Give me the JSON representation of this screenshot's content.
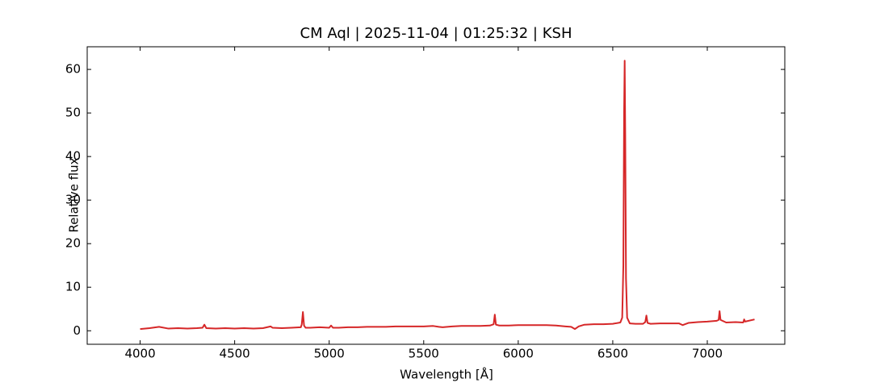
{
  "chart_data": {
    "type": "line",
    "title": "CM Aql | 2025-11-04 | 01:25:32 | KSH",
    "x_label": "Wavelength [Å]",
    "y_label": "Relative flux",
    "xlim": [
      3720,
      7410
    ],
    "ylim": [
      -3.1,
      65.2
    ],
    "xticks": [
      4000,
      4500,
      5000,
      5500,
      6000,
      6500,
      7000
    ],
    "yticks": [
      0,
      10,
      20,
      30,
      40,
      50,
      60
    ],
    "x": [
      4000,
      4050,
      4100,
      4150,
      4200,
      4250,
      4300,
      4330,
      4340,
      4350,
      4400,
      4450,
      4500,
      4550,
      4600,
      4650,
      4690,
      4700,
      4750,
      4800,
      4850,
      4855,
      4861,
      4867,
      4875,
      4900,
      4950,
      5000,
      5010,
      5020,
      5050,
      5100,
      5150,
      5200,
      5250,
      5300,
      5350,
      5400,
      5450,
      5500,
      5550,
      5580,
      5600,
      5650,
      5700,
      5750,
      5800,
      5850,
      5870,
      5876,
      5882,
      5900,
      5950,
      6000,
      6050,
      6100,
      6150,
      6200,
      6250,
      6280,
      6300,
      6320,
      6350,
      6400,
      6450,
      6500,
      6540,
      6550,
      6556,
      6560,
      6563,
      6566,
      6570,
      6576,
      6590,
      6620,
      6660,
      6672,
      6678,
      6684,
      6700,
      6750,
      6800,
      6850,
      6870,
      6900,
      6950,
      7000,
      7050,
      7060,
      7065,
      7070,
      7100,
      7150,
      7190,
      7195,
      7200,
      7250
    ],
    "series": [
      {
        "color": "#d62728",
        "values": [
          0.4,
          0.6,
          0.9,
          0.5,
          0.6,
          0.5,
          0.6,
          0.7,
          1.4,
          0.6,
          0.5,
          0.6,
          0.5,
          0.6,
          0.5,
          0.6,
          1.0,
          0.7,
          0.6,
          0.7,
          0.8,
          1.5,
          4.3,
          1.2,
          0.7,
          0.7,
          0.8,
          0.7,
          1.2,
          0.7,
          0.7,
          0.8,
          0.8,
          0.9,
          0.9,
          0.9,
          1.0,
          1.0,
          1.0,
          1.0,
          1.1,
          0.9,
          0.8,
          1.0,
          1.1,
          1.1,
          1.1,
          1.2,
          1.5,
          3.7,
          1.4,
          1.2,
          1.2,
          1.3,
          1.3,
          1.3,
          1.3,
          1.2,
          1.0,
          0.9,
          0.4,
          1.0,
          1.4,
          1.5,
          1.5,
          1.6,
          1.9,
          3.0,
          15.0,
          50.0,
          62.0,
          45.0,
          12.0,
          3.0,
          1.7,
          1.6,
          1.6,
          2.0,
          3.5,
          1.8,
          1.6,
          1.7,
          1.7,
          1.7,
          1.3,
          1.8,
          2.0,
          2.1,
          2.3,
          2.5,
          4.5,
          2.5,
          1.9,
          2.0,
          1.9,
          2.6,
          2.1,
          2.6
        ]
      }
    ]
  }
}
